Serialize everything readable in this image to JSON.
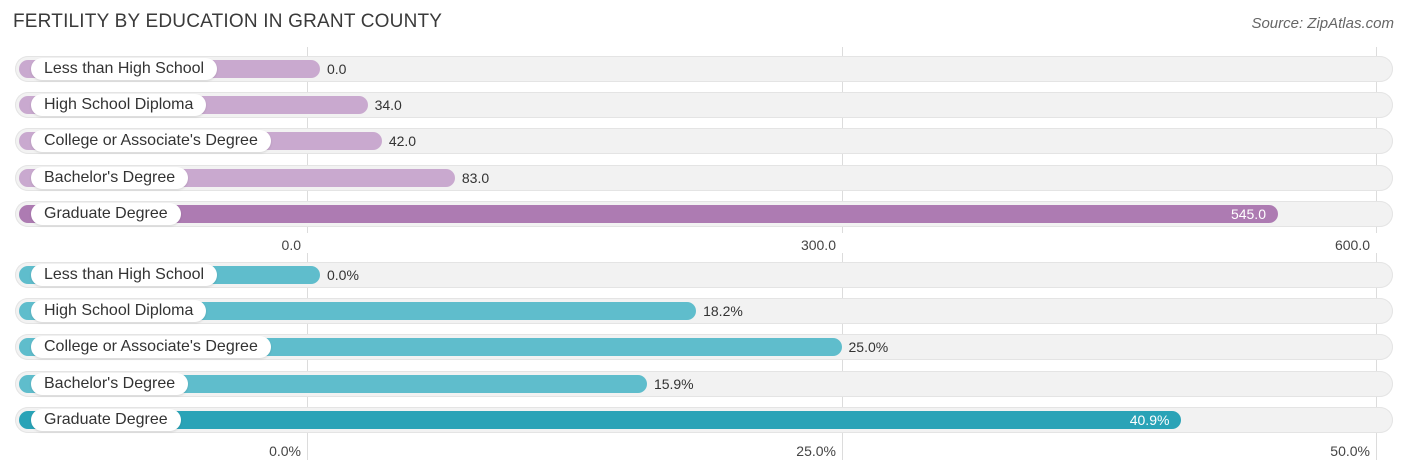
{
  "title": "FERTILITY BY EDUCATION IN GRANT COUNTY",
  "source": "Source: ZipAtlas.com",
  "chart_data": [
    {
      "type": "bar",
      "orientation": "horizontal",
      "categories": [
        "Less than High School",
        "High School Diploma",
        "College or Associate's Degree",
        "Bachelor's Degree",
        "Graduate Degree"
      ],
      "values": [
        0.0,
        34.0,
        42.0,
        83.0,
        545.0
      ],
      "value_labels": [
        "0.0",
        "34.0",
        "42.0",
        "83.0",
        "545.0"
      ],
      "xlim": [
        0,
        600
      ],
      "ticks": [
        0,
        300,
        600
      ],
      "tick_labels": [
        "0.0",
        "300.0",
        "600.0"
      ],
      "bar_color": "#c9a9cf",
      "highlight_color": "#ad7bb2",
      "grid": true
    },
    {
      "type": "bar",
      "orientation": "horizontal",
      "categories": [
        "Less than High School",
        "High School Diploma",
        "College or Associate's Degree",
        "Bachelor's Degree",
        "Graduate Degree"
      ],
      "values": [
        0.0,
        18.2,
        25.0,
        15.9,
        40.9
      ],
      "value_labels": [
        "0.0%",
        "18.2%",
        "25.0%",
        "15.9%",
        "40.9%"
      ],
      "xlim": [
        0,
        50
      ],
      "ticks": [
        0,
        25,
        50
      ],
      "tick_labels": [
        "0.0%",
        "25.0%",
        "50.0%"
      ],
      "bar_color": "#5fbdcc",
      "highlight_color": "#2aa3b7",
      "grid": true
    }
  ]
}
